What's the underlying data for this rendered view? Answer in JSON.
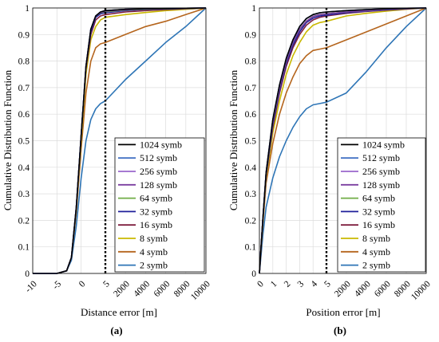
{
  "figure": {
    "panels": [
      {
        "label": "(a)",
        "xlabel": "Distance error [m]",
        "ylabel": "Cumulative Distribution Function",
        "xticks": [
          "-10",
          "-5",
          "0",
          "5",
          "2000",
          "4000",
          "6000",
          "8000",
          "10000"
        ],
        "yticks": [
          "0",
          "0.1",
          "0.2",
          "0.3",
          "0.4",
          "0.5",
          "0.6",
          "0.7",
          "0.8",
          "0.9",
          "1"
        ]
      },
      {
        "label": "(b)",
        "xlabel": "Position error [m]",
        "ylabel": "Cumulative Distribution Function",
        "xticks": [
          "0",
          "1",
          "2",
          "3",
          "4",
          "5",
          "2000",
          "4000",
          "6000",
          "8000",
          "10000"
        ],
        "yticks": [
          "0",
          "0.1",
          "0.2",
          "0.3",
          "0.4",
          "0.5",
          "0.6",
          "0.7",
          "0.8",
          "0.9",
          "1"
        ]
      }
    ],
    "legend": [
      "1024 symb",
      "512 symb",
      "256 symb",
      "128 symb",
      "64 symb",
      "32 symb",
      "16 symb",
      "8 symb",
      "4 symb",
      "2 symb"
    ]
  },
  "chart_data": [
    {
      "type": "line",
      "title": "",
      "xlabel": "Distance error [m]",
      "ylabel": "Cumulative Distribution Function",
      "x_scale": "piecewise: linear -10..5 then linear 5..10000",
      "xlim": [
        -10,
        10000
      ],
      "ylim": [
        0,
        1
      ],
      "grid": true,
      "legend_position": "bottom-right",
      "x": [
        -10,
        -5,
        -3,
        -2,
        -1,
        0,
        1,
        2,
        3,
        4,
        5,
        2000,
        4000,
        6000,
        8000,
        10000
      ],
      "series": [
        {
          "name": "1024 symb",
          "color": "#000000",
          "values": [
            0,
            0,
            0.01,
            0.06,
            0.25,
            0.52,
            0.78,
            0.92,
            0.97,
            0.985,
            0.99,
            0.995,
            0.997,
            0.998,
            0.999,
            1.0
          ]
        },
        {
          "name": "512 symb",
          "color": "#4472C4",
          "values": [
            0,
            0,
            0.01,
            0.06,
            0.25,
            0.52,
            0.78,
            0.92,
            0.97,
            0.985,
            0.99,
            0.995,
            0.997,
            0.998,
            0.999,
            1.0
          ]
        },
        {
          "name": "256 symb",
          "color": "#9966CC",
          "values": [
            0,
            0,
            0.01,
            0.06,
            0.25,
            0.52,
            0.78,
            0.92,
            0.97,
            0.985,
            0.99,
            0.995,
            0.997,
            0.998,
            0.999,
            1.0
          ]
        },
        {
          "name": "128 symb",
          "color": "#7B3FA0",
          "values": [
            0,
            0,
            0.01,
            0.06,
            0.25,
            0.52,
            0.78,
            0.92,
            0.97,
            0.983,
            0.988,
            0.993,
            0.996,
            0.998,
            0.999,
            1.0
          ]
        },
        {
          "name": "64 symb",
          "color": "#70AD47",
          "values": [
            0,
            0,
            0.01,
            0.06,
            0.25,
            0.52,
            0.78,
            0.92,
            0.97,
            0.982,
            0.986,
            0.992,
            0.995,
            0.997,
            0.999,
            1.0
          ]
        },
        {
          "name": "32 symb",
          "color": "#1F1F9A",
          "values": [
            0,
            0,
            0.01,
            0.06,
            0.25,
            0.52,
            0.78,
            0.91,
            0.965,
            0.978,
            0.982,
            0.99,
            0.994,
            0.996,
            0.998,
            1.0
          ]
        },
        {
          "name": "16 symb",
          "color": "#7F1F3F",
          "values": [
            0,
            0,
            0.01,
            0.06,
            0.25,
            0.52,
            0.77,
            0.9,
            0.955,
            0.97,
            0.975,
            0.985,
            0.99,
            0.994,
            0.997,
            1.0
          ]
        },
        {
          "name": "8 symb",
          "color": "#C9B800",
          "values": [
            0,
            0,
            0.01,
            0.06,
            0.24,
            0.5,
            0.75,
            0.88,
            0.93,
            0.955,
            0.965,
            0.975,
            0.983,
            0.99,
            0.995,
            1.0
          ]
        },
        {
          "name": "4 symb",
          "color": "#B5651D",
          "values": [
            0,
            0,
            0.01,
            0.06,
            0.23,
            0.47,
            0.68,
            0.8,
            0.85,
            0.865,
            0.87,
            0.9,
            0.93,
            0.95,
            0.975,
            1.0
          ]
        },
        {
          "name": "2 symb",
          "color": "#2E75B6",
          "values": [
            0,
            0,
            0.01,
            0.05,
            0.18,
            0.36,
            0.5,
            0.58,
            0.62,
            0.64,
            0.65,
            0.73,
            0.8,
            0.87,
            0.93,
            1.0
          ]
        }
      ]
    },
    {
      "type": "line",
      "title": "",
      "xlabel": "Position error [m]",
      "ylabel": "Cumulative Distribution Function",
      "x_scale": "piecewise: linear 0..5 then linear 5..10000",
      "xlim": [
        0,
        10000
      ],
      "ylim": [
        0,
        1
      ],
      "grid": true,
      "legend_position": "bottom-right",
      "x": [
        0,
        0.25,
        0.5,
        1,
        1.5,
        2,
        2.5,
        3,
        3.5,
        4,
        4.5,
        5,
        2000,
        4000,
        6000,
        8000,
        10000
      ],
      "series": [
        {
          "name": "1024 symb",
          "color": "#000000",
          "values": [
            0,
            0.2,
            0.38,
            0.58,
            0.71,
            0.81,
            0.88,
            0.93,
            0.96,
            0.975,
            0.982,
            0.985,
            0.99,
            0.994,
            0.997,
            0.999,
            1.0
          ]
        },
        {
          "name": "512 symb",
          "color": "#4472C4",
          "values": [
            0,
            0.2,
            0.38,
            0.58,
            0.71,
            0.81,
            0.88,
            0.93,
            0.96,
            0.975,
            0.982,
            0.985,
            0.99,
            0.994,
            0.997,
            0.999,
            1.0
          ]
        },
        {
          "name": "256 symb",
          "color": "#9966CC",
          "values": [
            0,
            0.2,
            0.38,
            0.58,
            0.71,
            0.81,
            0.88,
            0.93,
            0.96,
            0.975,
            0.982,
            0.985,
            0.99,
            0.994,
            0.997,
            0.999,
            1.0
          ]
        },
        {
          "name": "128 symb",
          "color": "#7B3FA0",
          "values": [
            0,
            0.2,
            0.38,
            0.57,
            0.7,
            0.8,
            0.87,
            0.92,
            0.95,
            0.968,
            0.975,
            0.978,
            0.985,
            0.99,
            0.995,
            0.998,
            1.0
          ]
        },
        {
          "name": "64 symb",
          "color": "#70AD47",
          "values": [
            0,
            0.2,
            0.38,
            0.57,
            0.7,
            0.8,
            0.87,
            0.92,
            0.95,
            0.968,
            0.975,
            0.978,
            0.985,
            0.99,
            0.995,
            0.998,
            1.0
          ]
        },
        {
          "name": "32 symb",
          "color": "#1F1F9A",
          "values": [
            0,
            0.2,
            0.37,
            0.56,
            0.69,
            0.79,
            0.86,
            0.91,
            0.945,
            0.962,
            0.97,
            0.973,
            0.982,
            0.988,
            0.993,
            0.997,
            1.0
          ]
        },
        {
          "name": "16 symb",
          "color": "#7F1F3F",
          "values": [
            0,
            0.2,
            0.37,
            0.55,
            0.68,
            0.78,
            0.85,
            0.9,
            0.935,
            0.955,
            0.965,
            0.97,
            0.98,
            0.987,
            0.992,
            0.996,
            1.0
          ]
        },
        {
          "name": "8 symb",
          "color": "#C9B800",
          "values": [
            0,
            0.19,
            0.36,
            0.53,
            0.65,
            0.75,
            0.82,
            0.87,
            0.91,
            0.935,
            0.945,
            0.95,
            0.97,
            0.98,
            0.988,
            0.995,
            1.0
          ]
        },
        {
          "name": "4 symb",
          "color": "#B5651D",
          "values": [
            0,
            0.18,
            0.34,
            0.49,
            0.6,
            0.68,
            0.74,
            0.79,
            0.82,
            0.84,
            0.845,
            0.85,
            0.88,
            0.91,
            0.94,
            0.97,
            1.0
          ]
        },
        {
          "name": "2 symb",
          "color": "#2E75B6",
          "values": [
            0,
            0.14,
            0.25,
            0.36,
            0.44,
            0.5,
            0.55,
            0.59,
            0.62,
            0.635,
            0.64,
            0.645,
            0.68,
            0.76,
            0.85,
            0.93,
            1.0
          ]
        }
      ]
    }
  ]
}
